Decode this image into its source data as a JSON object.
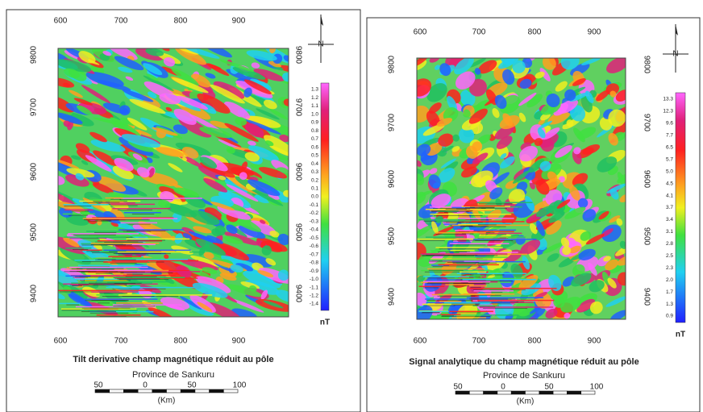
{
  "panels": [
    {
      "title": "Tilt derivative champ magnétique réduit au pôle",
      "subtitle": "Province de Sankuru",
      "north": "N",
      "top_ticks": [
        "600",
        "700",
        "800",
        "900"
      ],
      "bottom_ticks": [
        "600",
        "700",
        "800",
        "900"
      ],
      "left_ticks": [
        "9800",
        "9700",
        "9600",
        "9500",
        "9400"
      ],
      "right_ticks": [
        "9800",
        "9700",
        "9600",
        "9500",
        "9400"
      ],
      "colorbar": {
        "labels": [
          "1.3",
          "1.2",
          "1.1",
          "1.0",
          "0.9",
          "0.8",
          "0.7",
          "0.6",
          "0.5",
          "0.4",
          "0.3",
          "0.2",
          "0.1",
          "0.0",
          "-0.1",
          "-0.2",
          "-0.3",
          "-0.4",
          "-0.5",
          "-0.6",
          "-0.7",
          "-0.8",
          "-0.9",
          "-1.0",
          "-1.1",
          "-1.2",
          "-1.4"
        ],
        "unit": "nT"
      },
      "scale": {
        "labels": [
          "50",
          "0",
          "50",
          "100"
        ],
        "unit": "(Km)"
      }
    },
    {
      "title": "Signal analytique du champ magnétique réduit au pôle",
      "subtitle": "Province de Sankuru",
      "north": "N",
      "top_ticks": [
        "600",
        "700",
        "800",
        "900"
      ],
      "bottom_ticks": [
        "600",
        "700",
        "800",
        "900"
      ],
      "left_ticks": [
        "9800",
        "9700",
        "9600",
        "9500",
        "9400"
      ],
      "right_ticks": [
        "9800",
        "9700",
        "9600",
        "9500",
        "9400"
      ],
      "colorbar": {
        "labels": [
          "13.3",
          "12.3",
          "9.6",
          "7.7",
          "6.5",
          "5.7",
          "5.0",
          "4.5",
          "4.1",
          "3.7",
          "3.4",
          "3.1",
          "2.8",
          "2.5",
          "2.3",
          "2.0",
          "1.7",
          "1.3",
          "0.9"
        ],
        "unit": "nT"
      },
      "scale": {
        "labels": [
          "50",
          "0",
          "50",
          "100"
        ],
        "unit": "(Km)"
      }
    }
  ]
}
